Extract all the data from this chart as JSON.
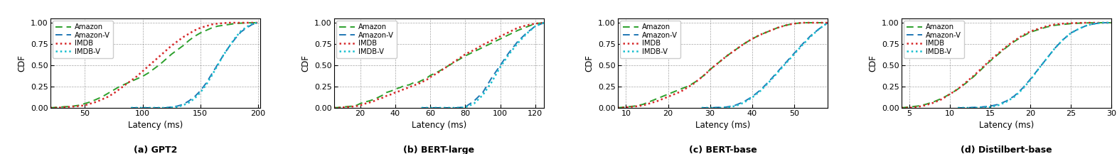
{
  "subplots": [
    {
      "title": "(a) GPT2",
      "xlabel": "Latency (ms)",
      "ylabel": "CDF",
      "xlim": [
        20,
        202
      ],
      "ylim": [
        0.0,
        1.05
      ],
      "xticks": [
        50,
        100,
        150,
        200
      ],
      "yticks": [
        0.0,
        0.25,
        0.5,
        0.75,
        1.0
      ],
      "curves": {
        "Amazon": {
          "color": "#2ca02c",
          "linestyle": "dashed",
          "linewidth": 1.4,
          "x": [
            20,
            25,
            30,
            35,
            40,
            45,
            50,
            55,
            60,
            65,
            70,
            75,
            80,
            85,
            90,
            95,
            100,
            105,
            110,
            115,
            120,
            125,
            130,
            135,
            140,
            145,
            150,
            155,
            160,
            165,
            170,
            175,
            180,
            185,
            190,
            195,
            200
          ],
          "y": [
            0.0,
            0.005,
            0.01,
            0.015,
            0.02,
            0.03,
            0.05,
            0.07,
            0.1,
            0.13,
            0.17,
            0.21,
            0.25,
            0.28,
            0.31,
            0.34,
            0.37,
            0.41,
            0.46,
            0.51,
            0.57,
            0.63,
            0.68,
            0.73,
            0.79,
            0.84,
            0.88,
            0.91,
            0.94,
            0.96,
            0.97,
            0.98,
            0.99,
            0.995,
            0.998,
            1.0,
            1.0
          ]
        },
        "Amazon-V": {
          "color": "#1f77b4",
          "linestyle": "dashed",
          "linewidth": 1.4,
          "x": [
            90,
            95,
            100,
            105,
            110,
            115,
            120,
            125,
            130,
            135,
            140,
            145,
            150,
            155,
            160,
            165,
            170,
            175,
            180,
            185,
            190,
            195,
            200
          ],
          "y": [
            0.0,
            0.0,
            0.0,
            0.0,
            0.0,
            0.0,
            0.0,
            0.01,
            0.02,
            0.04,
            0.08,
            0.13,
            0.2,
            0.29,
            0.4,
            0.51,
            0.62,
            0.72,
            0.81,
            0.89,
            0.94,
            0.98,
            1.0
          ]
        },
        "IMDB": {
          "color": "#d62728",
          "linestyle": "dotted",
          "linewidth": 1.8,
          "x": [
            20,
            25,
            30,
            35,
            40,
            45,
            50,
            55,
            60,
            65,
            70,
            75,
            80,
            85,
            90,
            95,
            100,
            105,
            110,
            115,
            120,
            125,
            130,
            135,
            140,
            145,
            150,
            155,
            160,
            165,
            170,
            175,
            180,
            185,
            190,
            195,
            200
          ],
          "y": [
            0.0,
            0.0,
            0.005,
            0.01,
            0.015,
            0.02,
            0.03,
            0.05,
            0.07,
            0.1,
            0.13,
            0.17,
            0.22,
            0.27,
            0.32,
            0.37,
            0.43,
            0.49,
            0.55,
            0.61,
            0.67,
            0.73,
            0.78,
            0.83,
            0.87,
            0.91,
            0.94,
            0.96,
            0.98,
            0.99,
            0.995,
            1.0,
            1.0,
            1.0,
            1.0,
            1.0,
            1.0
          ]
        },
        "IMDB-V": {
          "color": "#17becf",
          "linestyle": "dotted",
          "linewidth": 1.8,
          "x": [
            90,
            95,
            100,
            105,
            110,
            115,
            120,
            125,
            130,
            135,
            140,
            145,
            150,
            155,
            160,
            165,
            170,
            175,
            180,
            185,
            190,
            195,
            200
          ],
          "y": [
            0.0,
            0.0,
            0.0,
            0.0,
            0.0,
            0.0,
            0.0,
            0.005,
            0.01,
            0.03,
            0.06,
            0.11,
            0.18,
            0.27,
            0.38,
            0.5,
            0.62,
            0.72,
            0.82,
            0.9,
            0.95,
            0.99,
            1.0
          ]
        }
      }
    },
    {
      "title": "(b) BERT-large",
      "xlabel": "Latency (ms)",
      "ylabel": "CDF",
      "xlim": [
        5,
        125
      ],
      "ylim": [
        0.0,
        1.05
      ],
      "xticks": [
        20,
        40,
        60,
        80,
        100,
        120
      ],
      "yticks": [
        0.0,
        0.25,
        0.5,
        0.75,
        1.0
      ],
      "curves": {
        "Amazon": {
          "color": "#2ca02c",
          "linestyle": "dashed",
          "linewidth": 1.4,
          "x": [
            5,
            8,
            10,
            13,
            16,
            18,
            20,
            23,
            25,
            28,
            30,
            33,
            35,
            38,
            40,
            43,
            45,
            48,
            50,
            53,
            55,
            58,
            60,
            65,
            70,
            75,
            80,
            85,
            90,
            95,
            100,
            105,
            110,
            115,
            120,
            125
          ],
          "y": [
            0.0,
            0.005,
            0.01,
            0.015,
            0.02,
            0.03,
            0.05,
            0.07,
            0.08,
            0.1,
            0.12,
            0.15,
            0.18,
            0.2,
            0.22,
            0.24,
            0.26,
            0.27,
            0.29,
            0.3,
            0.32,
            0.35,
            0.38,
            0.43,
            0.49,
            0.55,
            0.61,
            0.66,
            0.71,
            0.76,
            0.81,
            0.86,
            0.91,
            0.95,
            0.99,
            1.0
          ]
        },
        "Amazon-V": {
          "color": "#1f77b4",
          "linestyle": "dashed",
          "linewidth": 1.4,
          "x": [
            55,
            60,
            65,
            70,
            75,
            80,
            85,
            90,
            95,
            100,
            105,
            110,
            115,
            120,
            125
          ],
          "y": [
            0.0,
            0.0,
            0.0,
            0.0,
            0.0,
            0.01,
            0.08,
            0.18,
            0.35,
            0.5,
            0.65,
            0.78,
            0.88,
            0.96,
            1.0
          ]
        },
        "IMDB": {
          "color": "#d62728",
          "linestyle": "dotted",
          "linewidth": 1.8,
          "x": [
            5,
            8,
            10,
            13,
            16,
            18,
            20,
            23,
            25,
            28,
            30,
            33,
            35,
            38,
            40,
            43,
            45,
            48,
            50,
            53,
            55,
            58,
            60,
            65,
            70,
            75,
            80,
            85,
            90,
            95,
            100,
            105,
            110,
            115,
            120,
            125
          ],
          "y": [
            0.0,
            0.0,
            0.005,
            0.01,
            0.015,
            0.02,
            0.03,
            0.05,
            0.06,
            0.08,
            0.1,
            0.12,
            0.14,
            0.16,
            0.18,
            0.2,
            0.22,
            0.24,
            0.26,
            0.28,
            0.3,
            0.33,
            0.36,
            0.42,
            0.49,
            0.56,
            0.63,
            0.68,
            0.74,
            0.79,
            0.84,
            0.89,
            0.94,
            0.97,
            0.99,
            1.0
          ]
        },
        "IMDB-V": {
          "color": "#17becf",
          "linestyle": "dotted",
          "linewidth": 1.8,
          "x": [
            55,
            60,
            65,
            70,
            75,
            80,
            85,
            90,
            95,
            100,
            105,
            110,
            115,
            120,
            125
          ],
          "y": [
            0.0,
            0.0,
            0.0,
            0.0,
            0.0,
            0.005,
            0.05,
            0.15,
            0.3,
            0.48,
            0.63,
            0.76,
            0.87,
            0.96,
            1.0
          ]
        }
      }
    },
    {
      "title": "(c) BERT-base",
      "xlabel": "Latency (ms)",
      "ylabel": "CDF",
      "xlim": [
        8,
        58
      ],
      "ylim": [
        0.0,
        1.05
      ],
      "xticks": [
        10,
        20,
        30,
        40,
        50
      ],
      "yticks": [
        0.0,
        0.25,
        0.5,
        0.75,
        1.0
      ],
      "curves": {
        "Amazon": {
          "color": "#2ca02c",
          "linestyle": "dashed",
          "linewidth": 1.4,
          "x": [
            8,
            9,
            10,
            11,
            12,
            13,
            14,
            15,
            16,
            17,
            18,
            19,
            20,
            21,
            22,
            23,
            24,
            25,
            26,
            27,
            28,
            29,
            30,
            32,
            34,
            36,
            38,
            40,
            42,
            44,
            46,
            48,
            50,
            52,
            54,
            56,
            58
          ],
          "y": [
            0.0,
            0.005,
            0.01,
            0.015,
            0.02,
            0.03,
            0.04,
            0.06,
            0.08,
            0.1,
            0.12,
            0.14,
            0.16,
            0.18,
            0.2,
            0.22,
            0.24,
            0.26,
            0.29,
            0.32,
            0.36,
            0.4,
            0.45,
            0.53,
            0.61,
            0.68,
            0.75,
            0.81,
            0.86,
            0.9,
            0.94,
            0.97,
            0.99,
            1.0,
            1.0,
            1.0,
            1.0
          ]
        },
        "Amazon-V": {
          "color": "#1f77b4",
          "linestyle": "dashed",
          "linewidth": 1.4,
          "x": [
            28,
            30,
            32,
            34,
            36,
            38,
            40,
            42,
            44,
            46,
            48,
            50,
            52,
            54,
            56,
            58
          ],
          "y": [
            0.0,
            0.0,
            0.005,
            0.01,
            0.03,
            0.07,
            0.13,
            0.21,
            0.31,
            0.42,
            0.53,
            0.64,
            0.75,
            0.85,
            0.93,
            1.0
          ]
        },
        "IMDB": {
          "color": "#d62728",
          "linestyle": "dotted",
          "linewidth": 1.8,
          "x": [
            8,
            9,
            10,
            11,
            12,
            13,
            14,
            15,
            16,
            17,
            18,
            19,
            20,
            21,
            22,
            23,
            24,
            25,
            26,
            27,
            28,
            29,
            30,
            32,
            34,
            36,
            38,
            40,
            42,
            44,
            46,
            48,
            50,
            52,
            54,
            56,
            58
          ],
          "y": [
            0.0,
            0.0,
            0.005,
            0.01,
            0.015,
            0.02,
            0.03,
            0.04,
            0.06,
            0.07,
            0.09,
            0.11,
            0.13,
            0.15,
            0.17,
            0.19,
            0.22,
            0.25,
            0.28,
            0.32,
            0.36,
            0.4,
            0.45,
            0.53,
            0.61,
            0.68,
            0.75,
            0.81,
            0.86,
            0.9,
            0.94,
            0.97,
            0.99,
            1.0,
            1.0,
            1.0,
            1.0
          ]
        },
        "IMDB-V": {
          "color": "#17becf",
          "linestyle": "dotted",
          "linewidth": 1.8,
          "x": [
            28,
            30,
            32,
            34,
            36,
            38,
            40,
            42,
            44,
            46,
            48,
            50,
            52,
            54,
            56,
            58
          ],
          "y": [
            0.0,
            0.0,
            0.0,
            0.005,
            0.02,
            0.06,
            0.12,
            0.2,
            0.3,
            0.41,
            0.52,
            0.63,
            0.74,
            0.84,
            0.93,
            1.0
          ]
        }
      }
    },
    {
      "title": "(d) Distilbert-base",
      "xlabel": "Latency (ms)",
      "ylabel": "CDF",
      "xlim": [
        4,
        30
      ],
      "ylim": [
        0.0,
        1.05
      ],
      "xticks": [
        5,
        10,
        15,
        20,
        25,
        30
      ],
      "yticks": [
        0.0,
        0.25,
        0.5,
        0.75,
        1.0
      ],
      "curves": {
        "Amazon": {
          "color": "#2ca02c",
          "linestyle": "dashed",
          "linewidth": 1.4,
          "x": [
            4,
            5,
            6,
            7,
            8,
            9,
            10,
            11,
            12,
            13,
            14,
            15,
            16,
            17,
            18,
            19,
            20,
            21,
            22,
            23,
            24,
            25,
            26,
            27,
            28,
            29,
            30
          ],
          "y": [
            0.0,
            0.01,
            0.02,
            0.04,
            0.07,
            0.11,
            0.16,
            0.22,
            0.29,
            0.37,
            0.46,
            0.55,
            0.63,
            0.71,
            0.78,
            0.84,
            0.89,
            0.92,
            0.95,
            0.97,
            0.98,
            0.99,
            0.995,
            0.998,
            1.0,
            1.0,
            1.0
          ]
        },
        "Amazon-V": {
          "color": "#1f77b4",
          "linestyle": "dashed",
          "linewidth": 1.4,
          "x": [
            11,
            12,
            13,
            14,
            15,
            16,
            17,
            18,
            19,
            20,
            21,
            22,
            23,
            24,
            25,
            26,
            27,
            28,
            29,
            30
          ],
          "y": [
            0.0,
            0.0,
            0.005,
            0.01,
            0.02,
            0.04,
            0.08,
            0.14,
            0.23,
            0.34,
            0.46,
            0.58,
            0.7,
            0.8,
            0.88,
            0.93,
            0.97,
            0.99,
            1.0,
            1.0
          ]
        },
        "IMDB": {
          "color": "#d62728",
          "linestyle": "dotted",
          "linewidth": 1.8,
          "x": [
            4,
            5,
            6,
            7,
            8,
            9,
            10,
            11,
            12,
            13,
            14,
            15,
            16,
            17,
            18,
            19,
            20,
            21,
            22,
            23,
            24,
            25,
            26,
            27,
            28,
            29,
            30
          ],
          "y": [
            0.0,
            0.0,
            0.01,
            0.03,
            0.06,
            0.1,
            0.16,
            0.22,
            0.3,
            0.38,
            0.47,
            0.56,
            0.64,
            0.72,
            0.79,
            0.85,
            0.9,
            0.93,
            0.96,
            0.98,
            0.99,
            0.995,
            0.998,
            1.0,
            1.0,
            1.0,
            1.0
          ]
        },
        "IMDB-V": {
          "color": "#17becf",
          "linestyle": "dotted",
          "linewidth": 1.8,
          "x": [
            11,
            12,
            13,
            14,
            15,
            16,
            17,
            18,
            19,
            20,
            21,
            22,
            23,
            24,
            25,
            26,
            27,
            28,
            29,
            30
          ],
          "y": [
            0.0,
            0.0,
            0.0,
            0.005,
            0.01,
            0.03,
            0.07,
            0.13,
            0.22,
            0.33,
            0.46,
            0.58,
            0.7,
            0.8,
            0.88,
            0.93,
            0.97,
            0.99,
            1.0,
            1.0
          ]
        }
      }
    }
  ]
}
